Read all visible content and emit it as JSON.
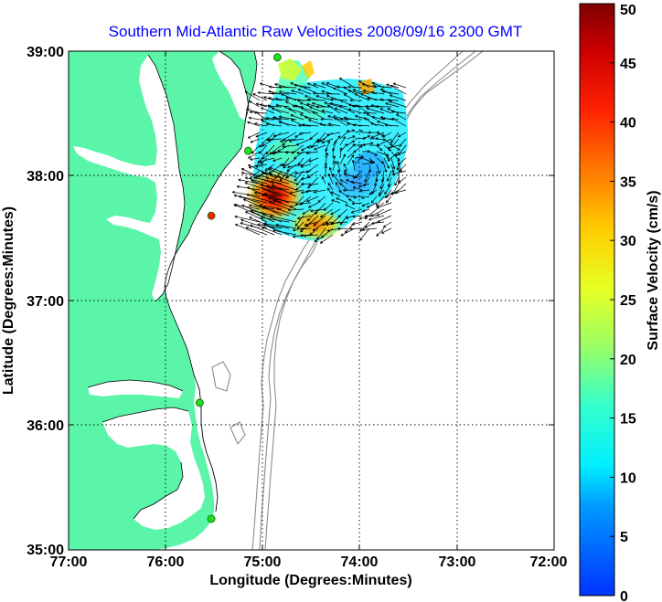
{
  "title": "Southern Mid-Atlantic Raw Velocities 2008/09/16 2300 GMT",
  "xlabel": "Longitude (Degrees:Minutes)",
  "ylabel": "Latitude (Degrees:Minutes)",
  "x_ticks": [
    "77:00",
    "76:00",
    "75:00",
    "74:00",
    "73:00",
    "72:00"
  ],
  "y_ticks": [
    "39:00",
    "38:00",
    "37:00",
    "36:00",
    "35:00"
  ],
  "colorbar": {
    "label": "Surface Velocity (cm/s)",
    "min": 0,
    "max": 50,
    "ticks": [
      "0",
      "5",
      "10",
      "15",
      "20",
      "25",
      "30",
      "35",
      "40",
      "45",
      "50"
    ]
  },
  "extent": {
    "lon": [
      -77,
      -72
    ],
    "lat": [
      35,
      39
    ]
  },
  "grid": true,
  "colors": {
    "land": "#5af5a8",
    "title": "#0000ff",
    "bathymetry": "#8c8c8c"
  },
  "stations": [
    {
      "lon": -74.85,
      "lat": 38.95,
      "color": "#22dd22"
    },
    {
      "lon": -75.15,
      "lat": 38.2,
      "color": "#22dd22"
    },
    {
      "lon": -75.53,
      "lat": 37.68,
      "color": "#ff2200"
    },
    {
      "lon": -75.65,
      "lat": 36.18,
      "color": "#22dd22"
    },
    {
      "lon": -75.53,
      "lat": 35.25,
      "color": "#22dd22"
    }
  ]
}
